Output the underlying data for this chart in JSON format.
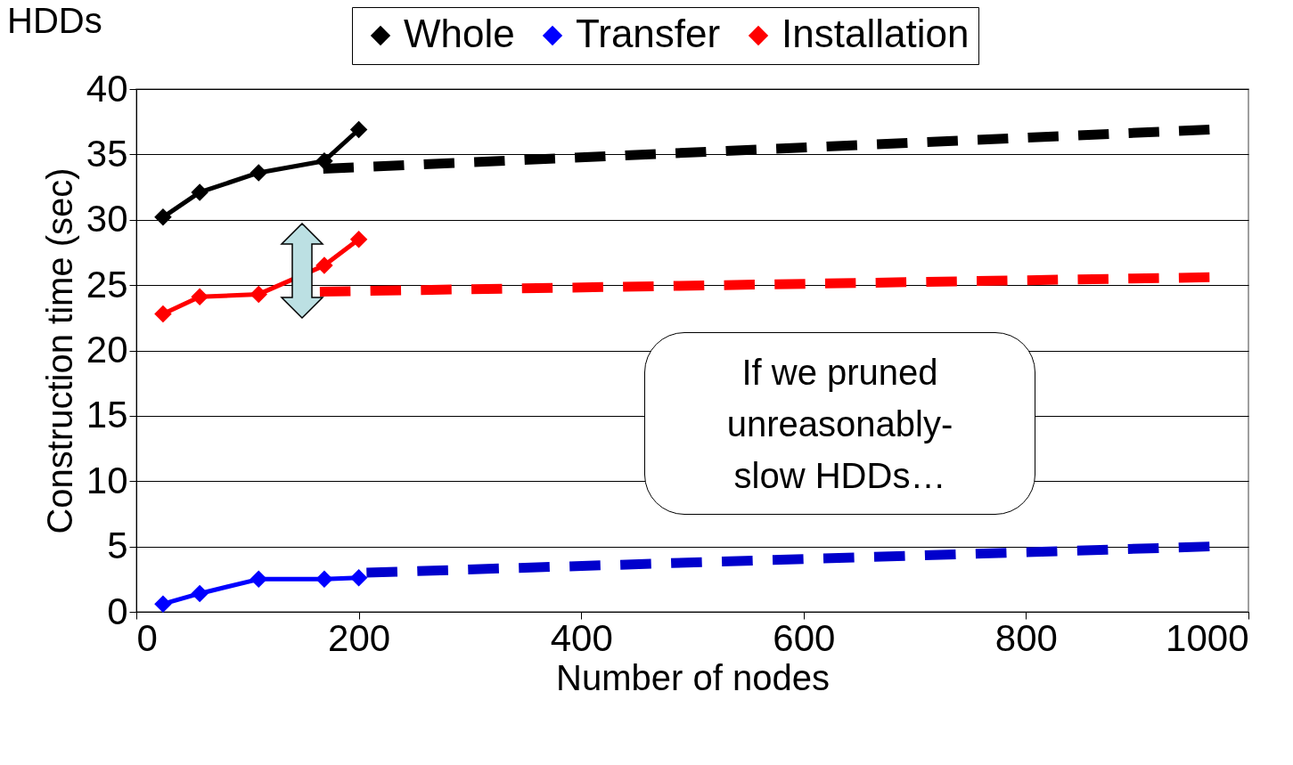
{
  "chart_data": {
    "type": "line",
    "xlabel": "Number of nodes",
    "ylabel": "Construction time (sec)",
    "xlim": [
      0,
      1000
    ],
    "xticks": [
      0,
      200,
      400,
      600,
      800,
      1000
    ],
    "ylim": [
      0,
      40
    ],
    "yticks": [
      0,
      5,
      10,
      15,
      20,
      25,
      30,
      35,
      40
    ],
    "grid": "y",
    "legend": "top",
    "marker": "diamond",
    "line_style": "solid",
    "annotations": [
      "HDDs",
      "If we pruned\nunreasonably-\nslow HDDs…"
    ],
    "series": [
      {
        "name": "Whole",
        "color": "#000000",
        "x": [
          24,
          57,
          110,
          169,
          200
        ],
        "values": [
          30.2,
          32.1,
          33.6,
          34.5,
          36.9
        ]
      },
      {
        "name": "Transfer",
        "color": "#0000ff",
        "x": [
          24,
          57,
          110,
          169,
          200
        ],
        "values": [
          0.6,
          1.4,
          2.5,
          2.5,
          2.6
        ]
      },
      {
        "name": "Installation",
        "color": "#ff0000",
        "x": [
          24,
          57,
          110,
          169,
          200
        ],
        "values": [
          22.8,
          24.1,
          24.3,
          26.5,
          28.5
        ]
      },
      {
        "color": "#000000",
        "type": "line",
        "marker": "none",
        "line_style": "dashed",
        "x": [
          168,
          965
        ],
        "values": [
          33.9,
          36.9
        ]
      },
      {
        "color": "#0000cc",
        "type": "line",
        "marker": "none",
        "line_style": "dashed",
        "x": [
          207,
          965
        ],
        "values": [
          3.0,
          5.0
        ]
      },
      {
        "color": "#ff0000",
        "type": "line",
        "marker": "none",
        "line_style": "dashed",
        "x": [
          165,
          965
        ],
        "values": [
          24.5,
          25.6
        ]
      }
    ]
  }
}
